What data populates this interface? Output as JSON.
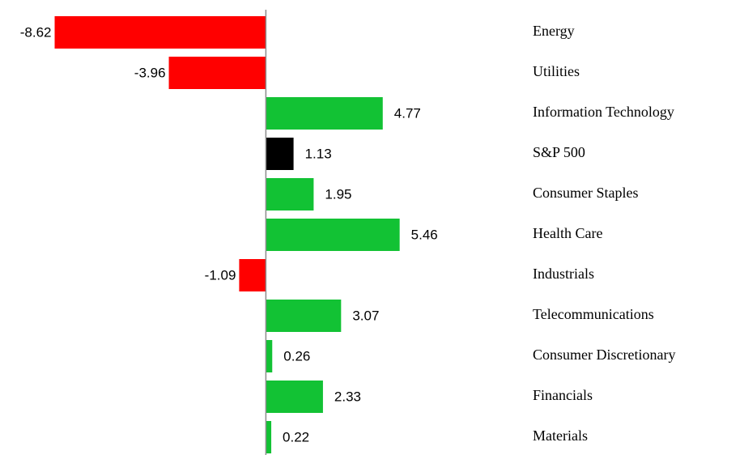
{
  "chart_data": {
    "type": "bar",
    "orientation": "horizontal",
    "categories": [
      "Energy",
      "Utilities",
      "Information Technology",
      "S&P 500",
      "Consumer Staples",
      "Health Care",
      "Industrials",
      "Telecommunications",
      "Consumer Discretionary",
      "Financials",
      "Materials"
    ],
    "values": [
      -8.62,
      -3.96,
      4.77,
      1.13,
      1.95,
      5.46,
      -1.09,
      3.07,
      0.26,
      2.33,
      0.22
    ],
    "colors": [
      "#ff0000",
      "#ff0000",
      "#12c234",
      "#000000",
      "#12c234",
      "#12c234",
      "#ff0000",
      "#12c234",
      "#12c234",
      "#12c234",
      "#12c234"
    ],
    "xlim": [
      -9,
      6
    ]
  }
}
